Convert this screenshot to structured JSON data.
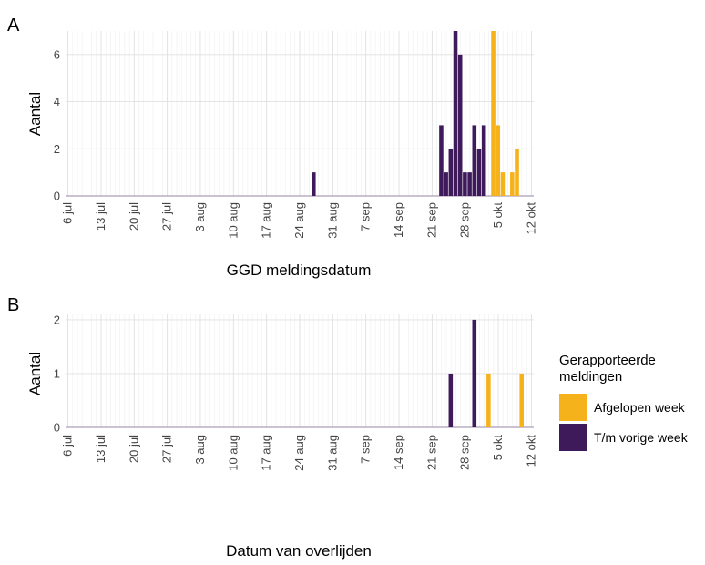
{
  "colors": {
    "afgelopen": "#F5B21A",
    "vorige": "#3E1A5B",
    "grid_major": "#e0e0e0",
    "grid_minor": "#efefef"
  },
  "legend": {
    "title_line1": "Gerapporteerde",
    "title_line2": "meldingen",
    "items": [
      {
        "label": "Afgelopen week",
        "color": "#F5B21A"
      },
      {
        "label": "T/m vorige week",
        "color": "#3E1A5B"
      }
    ]
  },
  "chart_data": [
    {
      "type": "bar",
      "panel": "A",
      "xlabel": "GGD meldingsdatum",
      "ylabel": "Aantal",
      "x_type": "date",
      "xlim": [
        "2020-07-06",
        "2020-10-13"
      ],
      "ylim": [
        0,
        7
      ],
      "y_ticks": [
        0,
        2,
        4,
        6
      ],
      "x_ticks": [
        "6 jul",
        "13 jul",
        "20 jul",
        "27 jul",
        "3 aug",
        "10 aug",
        "17 aug",
        "24 aug",
        "31 aug",
        "7 sep",
        "14 sep",
        "21 sep",
        "28 sep",
        "5 okt",
        "12 okt"
      ],
      "legend": "right",
      "grid": true,
      "series": [
        {
          "name": "T/m vorige week",
          "color": "#3E1A5B",
          "points": [
            [
              "2020-08-27",
              1
            ],
            [
              "2020-09-23",
              3
            ],
            [
              "2020-09-24",
              1
            ],
            [
              "2020-09-25",
              2
            ],
            [
              "2020-09-26",
              7
            ],
            [
              "2020-09-27",
              6
            ],
            [
              "2020-09-28",
              1
            ],
            [
              "2020-09-29",
              1
            ],
            [
              "2020-09-30",
              3
            ],
            [
              "2020-10-01",
              2
            ],
            [
              "2020-10-02",
              3
            ]
          ]
        },
        {
          "name": "Afgelopen week",
          "color": "#F5B21A",
          "points": [
            [
              "2020-10-04",
              7
            ],
            [
              "2020-10-05",
              3
            ],
            [
              "2020-10-06",
              1
            ],
            [
              "2020-10-08",
              1
            ],
            [
              "2020-10-09",
              2
            ]
          ]
        }
      ]
    },
    {
      "type": "bar",
      "panel": "B",
      "xlabel": "Datum van overlijden",
      "ylabel": "Aantal",
      "x_type": "date",
      "xlim": [
        "2020-07-06",
        "2020-10-13"
      ],
      "ylim": [
        0,
        2.1
      ],
      "y_ticks": [
        0,
        1,
        2
      ],
      "x_ticks": [
        "6 jul",
        "13 jul",
        "20 jul",
        "27 jul",
        "3 aug",
        "10 aug",
        "17 aug",
        "24 aug",
        "31 aug",
        "7 sep",
        "14 sep",
        "21 sep",
        "28 sep",
        "5 okt",
        "12 okt"
      ],
      "legend": "right",
      "grid": true,
      "series": [
        {
          "name": "T/m vorige week",
          "color": "#3E1A5B",
          "points": [
            [
              "2020-09-25",
              1
            ],
            [
              "2020-09-30",
              2
            ]
          ]
        },
        {
          "name": "Afgelopen week",
          "color": "#F5B21A",
          "points": [
            [
              "2020-10-03",
              1
            ],
            [
              "2020-10-10",
              1
            ]
          ]
        }
      ]
    }
  ]
}
